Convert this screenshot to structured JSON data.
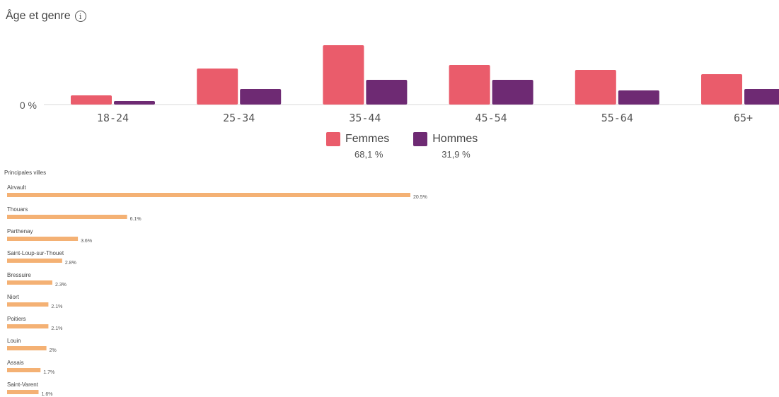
{
  "header": {
    "title": "Âge et genre",
    "info_icon": "info-circle-icon"
  },
  "colors": {
    "femmes": "#ea5c6b",
    "hommes": "#6e2a73",
    "cities_bar": "#f4b174",
    "axis": "#d8d8d8"
  },
  "chart_data": [
    {
      "type": "bar",
      "categories": [
        "18-24",
        "25-34",
        "35-44",
        "45-54",
        "55-64",
        "65+"
      ],
      "series": [
        {
          "name": "Femmes",
          "values": [
            1.3,
            5.1,
            8.4,
            5.6,
            4.9,
            4.3
          ]
        },
        {
          "name": "Hommes",
          "values": [
            0.5,
            2.2,
            3.5,
            3.5,
            2.0,
            2.2
          ]
        }
      ],
      "ytick": "0 %",
      "ylim": [
        0,
        8.4
      ],
      "legend": [
        {
          "name": "Femmes",
          "value": "68,1 %"
        },
        {
          "name": "Hommes",
          "value": "31,9 %"
        }
      ],
      "legend_position": "bottom-center"
    },
    {
      "type": "bar",
      "orientation": "horizontal",
      "title": "Principales villes",
      "categories": [
        "Airvault",
        "Thouars",
        "Parthenay",
        "Saint-Loup-sur-Thouet",
        "Bressuire",
        "Niort",
        "Poitiers",
        "Louin",
        "Assais",
        "Saint-Varent"
      ],
      "values": [
        20.5,
        6.1,
        3.6,
        2.8,
        2.3,
        2.1,
        2.1,
        2,
        1.7,
        1.6
      ],
      "value_labels": [
        "20.5%",
        "6.1%",
        "3.6%",
        "2.8%",
        "2.3%",
        "2.1%",
        "2.1%",
        "2%",
        "1.7%",
        "1.6%"
      ]
    }
  ]
}
